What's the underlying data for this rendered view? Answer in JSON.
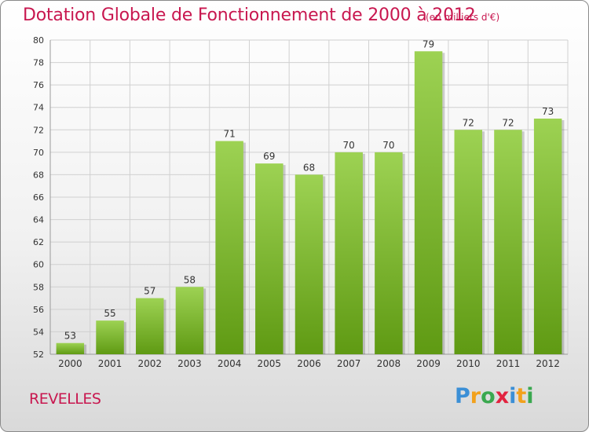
{
  "title": "Dotation Globale de Fonctionnement de 2000 à 2012",
  "unit": "(en milliers d'€)",
  "commune": "REVELLES",
  "logo": {
    "text": "Proxiti",
    "letters": [
      {
        "ch": "P",
        "color": "#3b8fd6"
      },
      {
        "ch": "r",
        "color": "#f2a11c"
      },
      {
        "ch": "o",
        "color": "#3aa84f"
      },
      {
        "ch": "x",
        "color": "#e2233f"
      },
      {
        "ch": "i",
        "color": "#3b8fd6"
      },
      {
        "ch": "t",
        "color": "#f2a11c"
      },
      {
        "ch": "i",
        "color": "#3aa84f"
      }
    ]
  },
  "colors": {
    "title": "#c8174f",
    "bar_top": "#9dd253",
    "bar_bottom": "#5f9a13",
    "grid": "#d0d0d0",
    "axis_text": "#333333"
  },
  "chart_data": {
    "type": "bar",
    "categories": [
      "2000",
      "2001",
      "2002",
      "2003",
      "2004",
      "2005",
      "2006",
      "2007",
      "2008",
      "2009",
      "2010",
      "2011",
      "2012"
    ],
    "values": [
      53,
      55,
      57,
      58,
      71,
      69,
      68,
      70,
      70,
      79,
      72,
      72,
      73
    ],
    "ylim": [
      52,
      80
    ],
    "yticks": [
      52,
      54,
      56,
      58,
      60,
      62,
      64,
      66,
      68,
      70,
      72,
      74,
      76,
      78,
      80
    ],
    "grid": true
  }
}
